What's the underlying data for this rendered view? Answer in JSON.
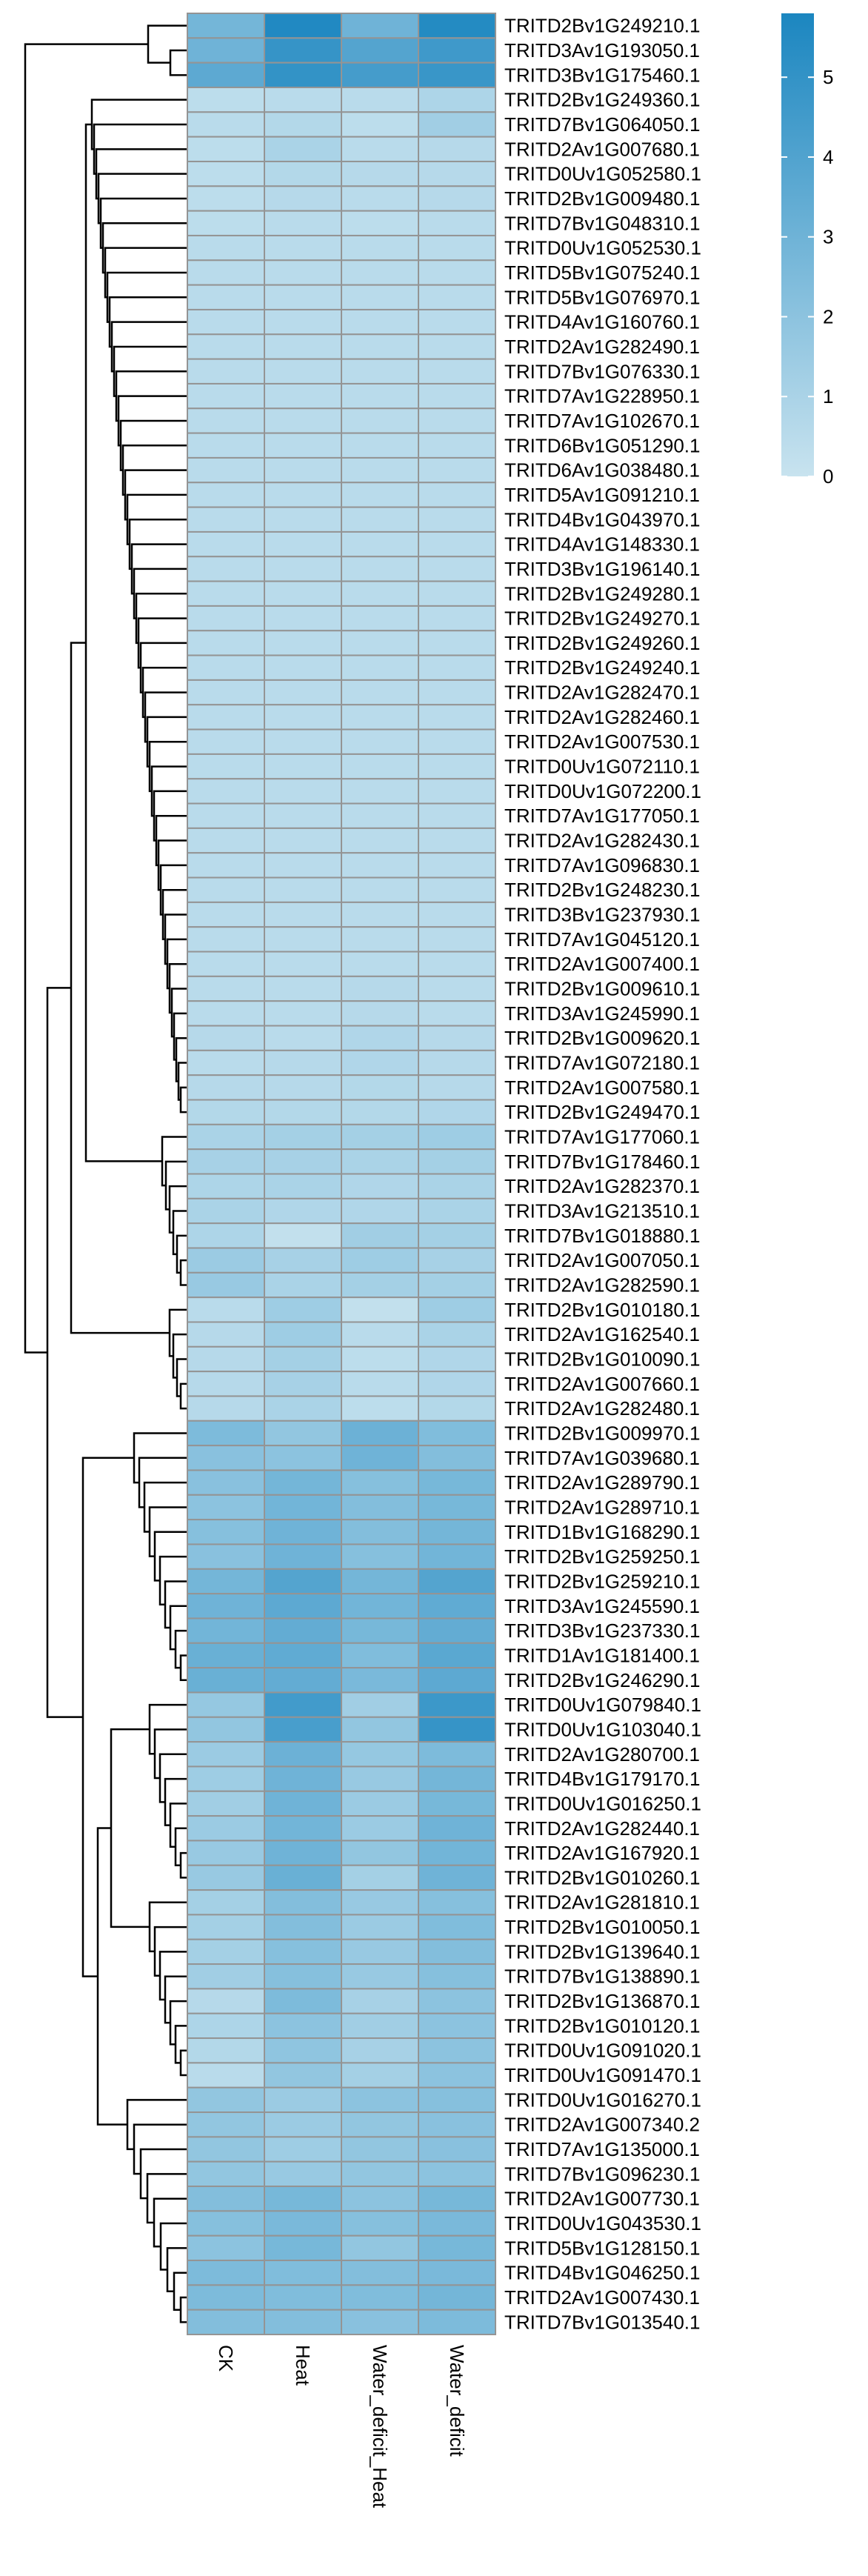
{
  "chart_data": {
    "type": "heatmap",
    "title": "",
    "xlabel": "",
    "ylabel": "",
    "columns": [
      "CK",
      "Heat",
      "Water_deficit_Heat",
      "Water_deficit"
    ],
    "rows": [
      "TRITD2Bv1G249210.1",
      "TRITD3Av1G193050.1",
      "TRITD3Bv1G175460.1",
      "TRITD2Bv1G249360.1",
      "TRITD7Bv1G064050.1",
      "TRITD2Av1G007680.1",
      "TRITD0Uv1G052580.1",
      "TRITD2Bv1G009480.1",
      "TRITD7Bv1G048310.1",
      "TRITD0Uv1G052530.1",
      "TRITD5Bv1G075240.1",
      "TRITD5Bv1G076970.1",
      "TRITD4Av1G160760.1",
      "TRITD2Av1G282490.1",
      "TRITD7Bv1G076330.1",
      "TRITD7Av1G228950.1",
      "TRITD7Av1G102670.1",
      "TRITD6Bv1G051290.1",
      "TRITD6Av1G038480.1",
      "TRITD5Av1G091210.1",
      "TRITD4Bv1G043970.1",
      "TRITD4Av1G148330.1",
      "TRITD3Bv1G196140.1",
      "TRITD2Bv1G249280.1",
      "TRITD2Bv1G249270.1",
      "TRITD2Bv1G249260.1",
      "TRITD2Bv1G249240.1",
      "TRITD2Av1G282470.1",
      "TRITD2Av1G282460.1",
      "TRITD2Av1G007530.1",
      "TRITD0Uv1G072110.1",
      "TRITD0Uv1G072200.1",
      "TRITD7Av1G177050.1",
      "TRITD2Av1G282430.1",
      "TRITD7Av1G096830.1",
      "TRITD2Bv1G248230.1",
      "TRITD3Bv1G237930.1",
      "TRITD7Av1G045120.1",
      "TRITD2Av1G007400.1",
      "TRITD2Bv1G009610.1",
      "TRITD3Av1G245990.1",
      "TRITD2Bv1G009620.1",
      "TRITD7Av1G072180.1",
      "TRITD2Av1G007580.1",
      "TRITD2Bv1G249470.1",
      "TRITD7Av1G177060.1",
      "TRITD7Bv1G178460.1",
      "TRITD2Av1G282370.1",
      "TRITD3Av1G213510.1",
      "TRITD7Bv1G018880.1",
      "TRITD2Av1G007050.1",
      "TRITD2Av1G282590.1",
      "TRITD2Bv1G010180.1",
      "TRITD2Av1G162540.1",
      "TRITD2Bv1G010090.1",
      "TRITD2Av1G007660.1",
      "TRITD2Av1G282480.1",
      "TRITD2Bv1G009970.1",
      "TRITD7Av1G039680.1",
      "TRITD2Av1G289790.1",
      "TRITD2Av1G289710.1",
      "TRITD1Bv1G168290.1",
      "TRITD2Bv1G259250.1",
      "TRITD2Bv1G259210.1",
      "TRITD3Av1G245590.1",
      "TRITD3Bv1G237330.1",
      "TRITD1Av1G181400.1",
      "TRITD2Bv1G246290.1",
      "TRITD0Uv1G079840.1",
      "TRITD0Uv1G103040.1",
      "TRITD2Av1G280700.1",
      "TRITD4Bv1G179170.1",
      "TRITD0Uv1G016250.1",
      "TRITD2Av1G282440.1",
      "TRITD2Av1G167920.1",
      "TRITD2Bv1G010260.1",
      "TRITD2Av1G281810.1",
      "TRITD2Bv1G010050.1",
      "TRITD2Bv1G139640.1",
      "TRITD7Bv1G138890.1",
      "TRITD2Bv1G136870.1",
      "TRITD2Bv1G010120.1",
      "TRITD0Uv1G091020.1",
      "TRITD0Uv1G091470.1",
      "TRITD0Uv1G016270.1",
      "TRITD2Av1G007340.2",
      "TRITD7Av1G135000.1",
      "TRITD7Bv1G096230.1",
      "TRITD2Av1G007730.1",
      "TRITD0Uv1G043530.1",
      "TRITD5Bv1G128150.1",
      "TRITD4Bv1G046250.1",
      "TRITD2Av1G007430.1",
      "TRITD7Bv1G013540.1"
    ],
    "values": [
      [
        2.8,
        5.6,
        3.0,
        5.5
      ],
      [
        3.0,
        4.9,
        3.9,
        4.6
      ],
      [
        3.6,
        5.0,
        4.4,
        4.8
      ],
      [
        0.4,
        0.5,
        0.5,
        0.9
      ],
      [
        0.5,
        0.7,
        0.4,
        1.3
      ],
      [
        0.4,
        1.0,
        0.5,
        0.6
      ],
      [
        0.4,
        0.7,
        0.6,
        0.6
      ],
      [
        0.4,
        0.6,
        0.5,
        0.6
      ],
      [
        0.4,
        0.5,
        0.4,
        0.5
      ],
      [
        0.5,
        0.5,
        0.5,
        0.5
      ],
      [
        0.5,
        0.5,
        0.5,
        0.5
      ],
      [
        0.5,
        0.5,
        0.5,
        0.5
      ],
      [
        0.5,
        0.5,
        0.5,
        0.5
      ],
      [
        0.5,
        0.5,
        0.5,
        0.5
      ],
      [
        0.5,
        0.5,
        0.5,
        0.5
      ],
      [
        0.5,
        0.5,
        0.5,
        0.5
      ],
      [
        0.5,
        0.5,
        0.5,
        0.5
      ],
      [
        0.5,
        0.5,
        0.5,
        0.5
      ],
      [
        0.5,
        0.5,
        0.5,
        0.5
      ],
      [
        0.5,
        0.5,
        0.5,
        0.5
      ],
      [
        0.5,
        0.5,
        0.5,
        0.5
      ],
      [
        0.5,
        0.5,
        0.5,
        0.5
      ],
      [
        0.5,
        0.5,
        0.5,
        0.5
      ],
      [
        0.5,
        0.5,
        0.5,
        0.5
      ],
      [
        0.5,
        0.5,
        0.5,
        0.5
      ],
      [
        0.5,
        0.5,
        0.5,
        0.5
      ],
      [
        0.5,
        0.5,
        0.5,
        0.5
      ],
      [
        0.5,
        0.5,
        0.5,
        0.5
      ],
      [
        0.5,
        0.5,
        0.5,
        0.5
      ],
      [
        0.5,
        0.5,
        0.5,
        0.5
      ],
      [
        0.5,
        0.5,
        0.5,
        0.5
      ],
      [
        0.5,
        0.5,
        0.5,
        0.5
      ],
      [
        0.5,
        0.5,
        0.5,
        0.5
      ],
      [
        0.5,
        0.5,
        0.5,
        0.5
      ],
      [
        0.5,
        0.5,
        0.5,
        0.5
      ],
      [
        0.5,
        0.5,
        0.5,
        0.5
      ],
      [
        0.5,
        0.5,
        0.5,
        0.5
      ],
      [
        0.5,
        0.5,
        0.5,
        0.5
      ],
      [
        0.5,
        0.5,
        0.5,
        0.5
      ],
      [
        0.5,
        0.5,
        0.6,
        0.5
      ],
      [
        0.5,
        0.5,
        0.6,
        0.5
      ],
      [
        0.6,
        0.5,
        0.8,
        0.6
      ],
      [
        0.5,
        0.6,
        0.8,
        0.6
      ],
      [
        0.6,
        0.6,
        0.7,
        0.6
      ],
      [
        0.7,
        0.7,
        0.7,
        0.8
      ],
      [
        1.0,
        1.2,
        1.2,
        1.4
      ],
      [
        1.1,
        1.1,
        1.0,
        1.2
      ],
      [
        0.9,
        1.0,
        0.8,
        1.0
      ],
      [
        1.0,
        0.8,
        0.8,
        1.0
      ],
      [
        0.9,
        0.2,
        1.3,
        1.2
      ],
      [
        1.5,
        1.1,
        1.4,
        1.1
      ],
      [
        1.6,
        1.0,
        1.2,
        1.2
      ],
      [
        0.5,
        1.4,
        0.2,
        1.4
      ],
      [
        0.6,
        1.4,
        0.5,
        1.0
      ],
      [
        0.6,
        1.2,
        0.4,
        0.8
      ],
      [
        0.6,
        1.1,
        0.5,
        0.8
      ],
      [
        0.6,
        1.0,
        0.4,
        0.7
      ],
      [
        2.5,
        1.8,
        3.1,
        2.4
      ],
      [
        2.1,
        2.0,
        3.0,
        2.3
      ],
      [
        2.1,
        2.8,
        2.2,
        2.7
      ],
      [
        2.0,
        2.9,
        2.3,
        2.7
      ],
      [
        2.2,
        3.0,
        2.3,
        2.8
      ],
      [
        2.1,
        3.0,
        2.2,
        2.9
      ],
      [
        2.8,
        3.9,
        2.8,
        3.9
      ],
      [
        3.0,
        3.6,
        2.9,
        3.5
      ],
      [
        2.9,
        3.4,
        2.7,
        3.4
      ],
      [
        3.2,
        3.5,
        2.4,
        3.7
      ],
      [
        3.2,
        3.4,
        2.6,
        3.6
      ],
      [
        1.7,
        4.5,
        1.3,
        4.7
      ],
      [
        1.8,
        4.3,
        1.8,
        4.9
      ],
      [
        1.5,
        3.1,
        1.7,
        2.5
      ],
      [
        1.4,
        3.0,
        1.6,
        2.8
      ],
      [
        1.3,
        3.0,
        1.5,
        2.7
      ],
      [
        1.5,
        2.9,
        1.5,
        3.0
      ],
      [
        1.6,
        3.0,
        1.8,
        2.9
      ],
      [
        1.6,
        3.2,
        1.2,
        3.0
      ],
      [
        1.2,
        2.3,
        1.6,
        2.2
      ],
      [
        1.2,
        2.3,
        1.5,
        2.4
      ],
      [
        1.2,
        2.2,
        1.6,
        2.3
      ],
      [
        1.3,
        2.2,
        1.6,
        2.2
      ],
      [
        0.6,
        2.5,
        1.1,
        2.0
      ],
      [
        0.9,
        2.0,
        1.3,
        2.0
      ],
      [
        0.7,
        1.9,
        1.1,
        2.0
      ],
      [
        0.5,
        1.8,
        1.2,
        2.0
      ],
      [
        1.8,
        1.5,
        2.0,
        2.2
      ],
      [
        1.8,
        1.5,
        1.8,
        2.1
      ],
      [
        1.8,
        1.4,
        1.8,
        2.1
      ],
      [
        1.8,
        1.6,
        1.8,
        2.0
      ],
      [
        2.3,
        2.7,
        2.0,
        2.7
      ],
      [
        2.2,
        2.6,
        2.2,
        2.6
      ],
      [
        2.0,
        2.7,
        1.8,
        2.7
      ],
      [
        2.5,
        2.4,
        2.3,
        2.6
      ],
      [
        2.5,
        2.4,
        2.4,
        2.8
      ],
      [
        2.3,
        2.3,
        2.1,
        2.5
      ]
    ],
    "legend": {
      "ticks": [
        0,
        1,
        2,
        3,
        4,
        5
      ],
      "range": [
        0,
        5.8
      ],
      "low_color": "#c8e3ef",
      "high_color": "#1b86c0"
    },
    "cell_border_color": "#949494",
    "dendrogram": "rows"
  }
}
